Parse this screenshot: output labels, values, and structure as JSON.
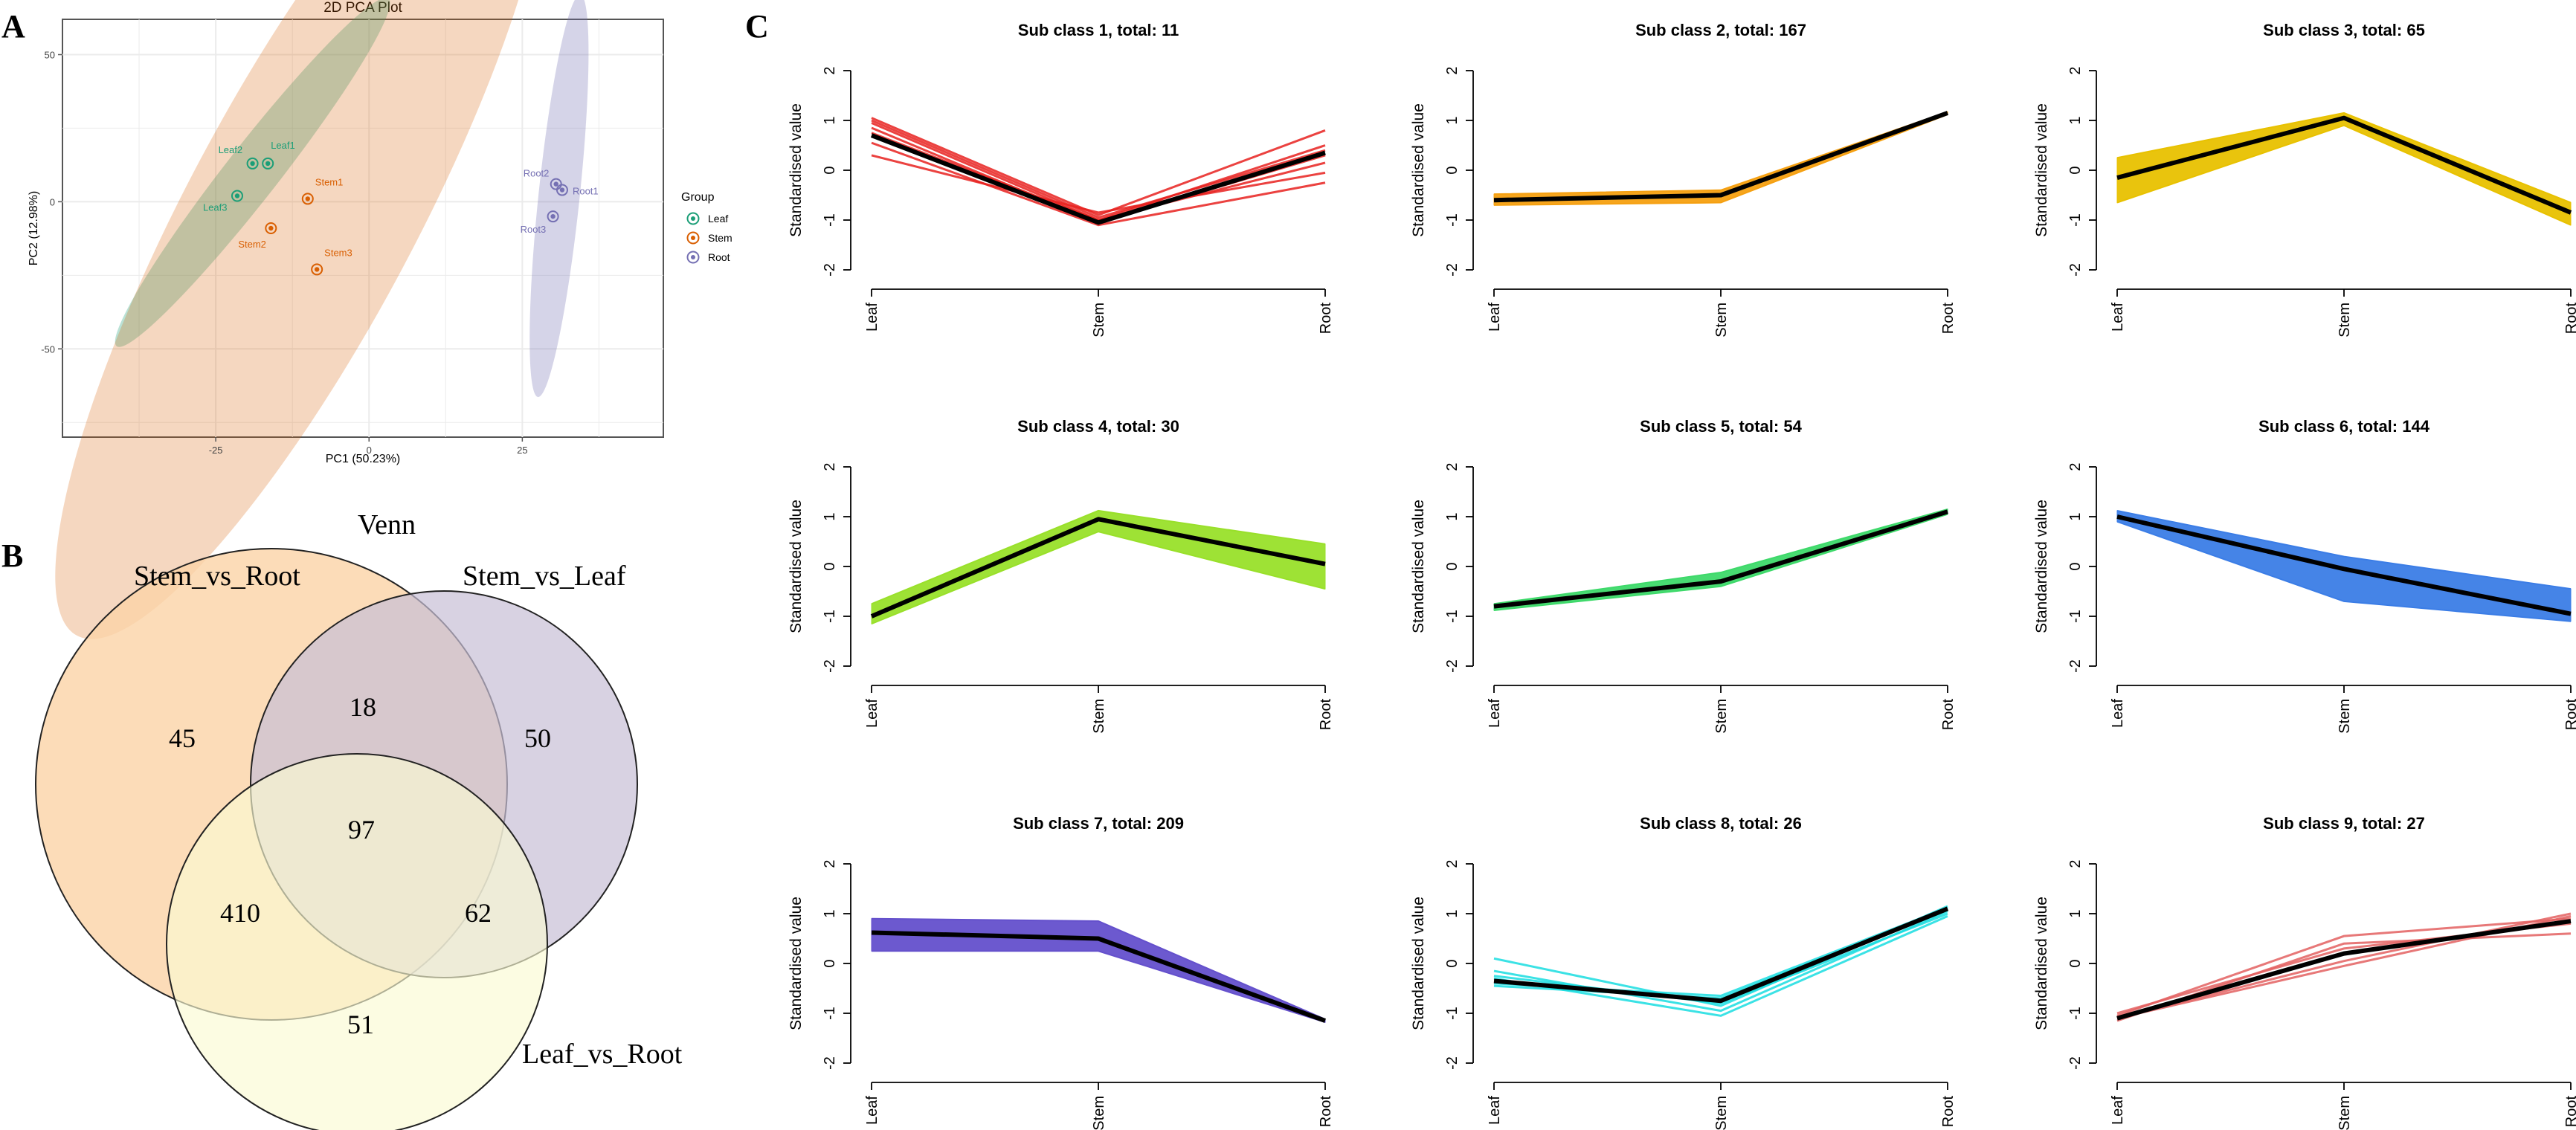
{
  "panel_labels": {
    "a": "A",
    "b": "B",
    "c": "C"
  },
  "colors": {
    "leaf": "#1b9e77",
    "stem": "#d95f02",
    "root": "#7570b3",
    "venn_a": "#fbd3a6",
    "venn_b": "#c7bfd6",
    "venn_c": "#fbfad2",
    "mean_line": "#000000"
  },
  "pca": {
    "title": "2D PCA Plot",
    "x_label": "PC1 (50.23%)",
    "y_label": "PC2 (12.98%)",
    "legend_title": "Group",
    "legend_items": [
      {
        "label": "Leaf",
        "color": "#1b9e77"
      },
      {
        "label": "Stem",
        "color": "#d95f02"
      },
      {
        "label": "Root",
        "color": "#7570b3"
      }
    ],
    "x_ticks": [
      "-25",
      "0",
      "25"
    ],
    "y_ticks": [
      "50",
      "0",
      "-50"
    ]
  },
  "venn": {
    "title": "Venn",
    "set_labels": {
      "a": "Stem_vs_Root",
      "b": "Stem_vs_Leaf",
      "c": "Leaf_vs_Root"
    },
    "regions": {
      "a_only": "45",
      "b_only": "50",
      "c_only": "51",
      "ab": "18",
      "ac": "410",
      "bc": "62",
      "abc": "97"
    }
  },
  "chart_data": [
    {
      "type": "scatter",
      "title": "2D PCA Plot",
      "xlabel": "PC1 (50.23%)",
      "ylabel": "PC2 (12.98%)",
      "xlim": [
        -50,
        48
      ],
      "ylim": [
        -80,
        62
      ],
      "x_ticks": [
        -25,
        0,
        25
      ],
      "y_ticks": [
        -50,
        0,
        50
      ],
      "groups": [
        {
          "name": "Leaf",
          "color": "#1b9e77",
          "ellipse": {
            "cx": -19,
            "cy": 10,
            "rx": 36,
            "ry": 9,
            "angle": -52
          },
          "points": [
            {
              "label": "Leaf1",
              "x": -16.5,
              "y": 13
            },
            {
              "label": "Leaf2",
              "x": -19,
              "y": 13
            },
            {
              "label": "Leaf3",
              "x": -21.5,
              "y": 2
            }
          ]
        },
        {
          "name": "Stem",
          "color": "#d95f02",
          "ellipse": {
            "cx": -11,
            "cy": -4,
            "rx": 78,
            "ry": 39,
            "angle": -62
          },
          "points": [
            {
              "label": "Stem1",
              "x": -10,
              "y": 1
            },
            {
              "label": "Stem2",
              "x": -16,
              "y": -9
            },
            {
              "label": "Stem3",
              "x": -8.5,
              "y": -23
            }
          ]
        },
        {
          "name": "Root",
          "color": "#7570b3",
          "ellipse": {
            "cx": 31,
            "cy": 2,
            "rx": 33,
            "ry": 7,
            "angle": -84
          },
          "points": [
            {
              "label": "Root1",
              "x": 31.5,
              "y": 4
            },
            {
              "label": "Root2",
              "x": 30.5,
              "y": 6
            },
            {
              "label": "Root3",
              "x": 30,
              "y": -5
            }
          ]
        }
      ]
    },
    {
      "type": "line",
      "categories": [
        "Leaf",
        "Stem",
        "Root"
      ],
      "ylabel": "Standardised value",
      "ylim": [
        -2,
        2
      ],
      "y_ticks": [
        -2,
        -1,
        0,
        1,
        2
      ],
      "subplots": [
        {
          "title": "Sub class 1, total: 11",
          "color": "#e8211f",
          "mean": [
            0.7,
            -1.05,
            0.35
          ],
          "series": [
            [
              1.05,
              -0.9,
              0.8
            ],
            [
              0.95,
              -1.0,
              0.5
            ],
            [
              0.85,
              -1.05,
              0.3
            ],
            [
              0.75,
              -1.0,
              0.15
            ],
            [
              0.3,
              -0.85,
              -0.05
            ],
            [
              0.55,
              -1.1,
              -0.25
            ],
            [
              1.0,
              -0.95,
              0.4
            ]
          ]
        },
        {
          "title": "Sub class 2, total: 167",
          "color": "#f5a011",
          "mean": [
            -0.6,
            -0.5,
            1.15
          ],
          "band": {
            "upper": [
              -0.48,
              -0.4,
              1.17
            ],
            "lower": [
              -0.7,
              -0.65,
              1.12
            ]
          }
        },
        {
          "title": "Sub class 3, total: 65",
          "color": "#e8c100",
          "mean": [
            -0.15,
            1.05,
            -0.85
          ],
          "band": {
            "upper": [
              0.25,
              1.15,
              -0.65
            ],
            "lower": [
              -0.65,
              0.9,
              -1.1
            ]
          }
        },
        {
          "title": "Sub class 4, total: 30",
          "color": "#99e02a",
          "mean": [
            -1.0,
            0.95,
            0.05
          ],
          "band": {
            "upper": [
              -0.75,
              1.12,
              0.45
            ],
            "lower": [
              -1.15,
              0.7,
              -0.45
            ]
          }
        },
        {
          "title": "Sub class 5, total: 54",
          "color": "#3ed96a",
          "mean": [
            -0.8,
            -0.3,
            1.1
          ],
          "band": {
            "upper": [
              -0.75,
              -0.12,
              1.15
            ],
            "lower": [
              -0.88,
              -0.4,
              1.05
            ]
          }
        },
        {
          "title": "Sub class 6, total: 144",
          "color": "#3b7de6",
          "mean": [
            1.0,
            -0.05,
            -0.95
          ],
          "band": {
            "upper": [
              1.12,
              0.2,
              -0.45
            ],
            "lower": [
              0.9,
              -0.7,
              -1.1
            ]
          }
        },
        {
          "title": "Sub class 7, total: 209",
          "color": "#6450cc",
          "mean": [
            0.62,
            0.5,
            -1.15
          ],
          "band": {
            "upper": [
              0.9,
              0.85,
              -1.12
            ],
            "lower": [
              0.25,
              0.25,
              -1.18
            ]
          }
        },
        {
          "title": "Sub class 8, total: 26",
          "color": "#19dde0",
          "mean": [
            -0.35,
            -0.75,
            1.1
          ],
          "series": [
            [
              0.1,
              -0.85,
              1.15
            ],
            [
              -0.15,
              -0.95,
              1.05
            ],
            [
              -0.3,
              -1.05,
              0.95
            ],
            [
              -0.45,
              -0.7,
              1.1
            ],
            [
              -0.25,
              -0.8,
              1.0
            ],
            [
              -0.4,
              -0.65,
              1.12
            ]
          ]
        },
        {
          "title": "Sub class 9, total: 27",
          "color": "#e36060",
          "mean": [
            -1.1,
            0.2,
            0.85
          ],
          "series": [
            [
              -1.05,
              0.55,
              0.9
            ],
            [
              -1.15,
              0.4,
              0.6
            ],
            [
              -1.1,
              0.05,
              1.0
            ],
            [
              -1.0,
              0.3,
              0.8
            ],
            [
              -1.1,
              -0.05,
              0.95
            ]
          ]
        }
      ]
    }
  ]
}
